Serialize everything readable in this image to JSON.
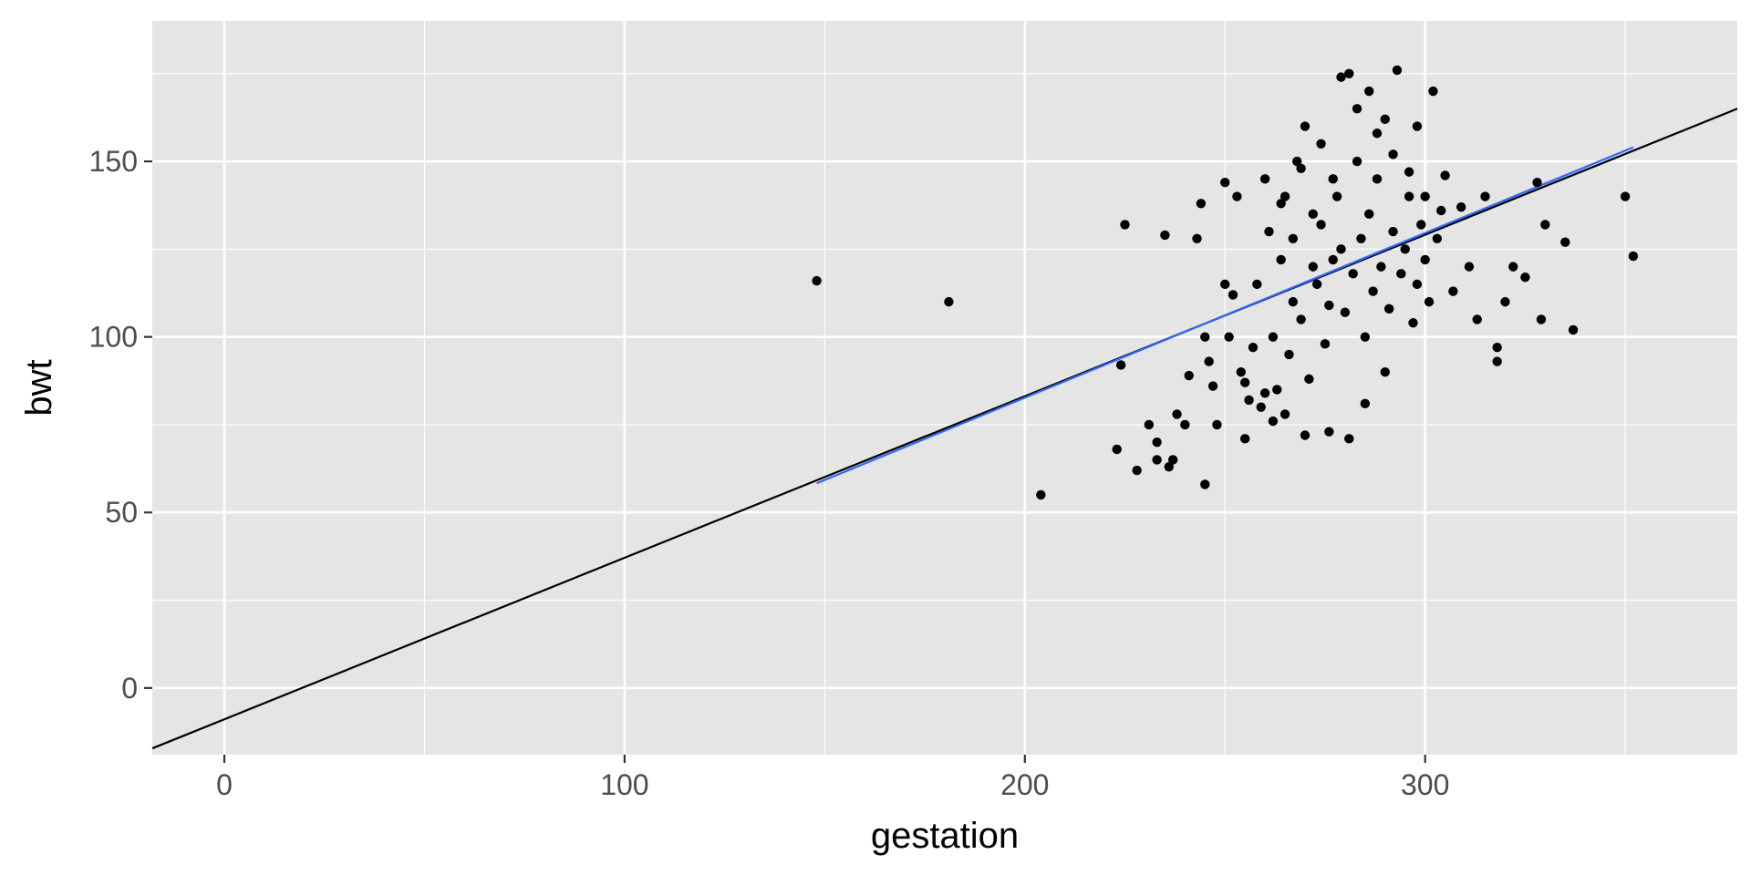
{
  "chart_data": {
    "type": "scatter",
    "title": "",
    "xlabel": "gestation",
    "ylabel": "bwt",
    "xlim": [
      -18,
      378
    ],
    "ylim": [
      -19,
      190
    ],
    "x_ticks": [
      0,
      100,
      200,
      300
    ],
    "x_tick_labels": [
      "0",
      "100",
      "200",
      "300"
    ],
    "y_ticks": [
      0,
      50,
      100,
      150
    ],
    "y_tick_labels": [
      "0",
      "50",
      "100",
      "150"
    ],
    "grid": true,
    "background_color": "#e5e5e5",
    "grid_color": "#ffffff",
    "point_color": "#000000",
    "points": [
      [
        148,
        116
      ],
      [
        181,
        110
      ],
      [
        204,
        55
      ],
      [
        223,
        68
      ],
      [
        225,
        132
      ],
      [
        224,
        92
      ],
      [
        228,
        62
      ],
      [
        231,
        75
      ],
      [
        233,
        65
      ],
      [
        233,
        70
      ],
      [
        235,
        129
      ],
      [
        236,
        63
      ],
      [
        237,
        65
      ],
      [
        238,
        78
      ],
      [
        240,
        75
      ],
      [
        241,
        89
      ],
      [
        243,
        128
      ],
      [
        244,
        138
      ],
      [
        245,
        58
      ],
      [
        246,
        93
      ],
      [
        247,
        86
      ],
      [
        248,
        75
      ],
      [
        250,
        144
      ],
      [
        251,
        100
      ],
      [
        252,
        112
      ],
      [
        253,
        140
      ],
      [
        254,
        90
      ],
      [
        255,
        71
      ],
      [
        256,
        82
      ],
      [
        257,
        97
      ],
      [
        258,
        115
      ],
      [
        259,
        80
      ],
      [
        260,
        145
      ],
      [
        261,
        130
      ],
      [
        262,
        100
      ],
      [
        263,
        85
      ],
      [
        264,
        122
      ],
      [
        265,
        140
      ],
      [
        266,
        95
      ],
      [
        267,
        110
      ],
      [
        268,
        150
      ],
      [
        269,
        105
      ],
      [
        270,
        160
      ],
      [
        271,
        88
      ],
      [
        272,
        120
      ],
      [
        273,
        115
      ],
      [
        274,
        132
      ],
      [
        275,
        98
      ],
      [
        276,
        109
      ],
      [
        277,
        122
      ],
      [
        278,
        140
      ],
      [
        279,
        125
      ],
      [
        280,
        107
      ],
      [
        281,
        175
      ],
      [
        282,
        118
      ],
      [
        283,
        165
      ],
      [
        284,
        128
      ],
      [
        285,
        100
      ],
      [
        286,
        135
      ],
      [
        287,
        113
      ],
      [
        288,
        145
      ],
      [
        289,
        120
      ],
      [
        290,
        162
      ],
      [
        291,
        108
      ],
      [
        292,
        130
      ],
      [
        293,
        176
      ],
      [
        294,
        118
      ],
      [
        295,
        125
      ],
      [
        296,
        140
      ],
      [
        297,
        104
      ],
      [
        298,
        115
      ],
      [
        299,
        132
      ],
      [
        300,
        122
      ],
      [
        301,
        110
      ],
      [
        302,
        170
      ],
      [
        303,
        128
      ],
      [
        305,
        146
      ],
      [
        307,
        113
      ],
      [
        309,
        137
      ],
      [
        311,
        120
      ],
      [
        313,
        105
      ],
      [
        315,
        140
      ],
      [
        318,
        93
      ],
      [
        318,
        97
      ],
      [
        320,
        110
      ],
      [
        322,
        120
      ],
      [
        325,
        117
      ],
      [
        328,
        144
      ],
      [
        329,
        105
      ],
      [
        330,
        132
      ],
      [
        335,
        127
      ],
      [
        337,
        102
      ],
      [
        350,
        140
      ],
      [
        352,
        123
      ],
      [
        270,
        72
      ],
      [
        276,
        73
      ],
      [
        281,
        71
      ],
      [
        285,
        81
      ],
      [
        290,
        90
      ],
      [
        265,
        78
      ],
      [
        260,
        84
      ],
      [
        255,
        87
      ],
      [
        250,
        115
      ],
      [
        245,
        100
      ],
      [
        262,
        76
      ],
      [
        267,
        128
      ],
      [
        272,
        135
      ],
      [
        277,
        145
      ],
      [
        283,
        150
      ],
      [
        288,
        158
      ],
      [
        292,
        152
      ],
      [
        296,
        147
      ],
      [
        300,
        140
      ],
      [
        304,
        136
      ],
      [
        298,
        160
      ],
      [
        286,
        170
      ],
      [
        279,
        174
      ],
      [
        274,
        155
      ],
      [
        269,
        148
      ],
      [
        264,
        138
      ]
    ],
    "lines": [
      {
        "name": "",
        "color": "#000000",
        "x": [
          -18,
          378
        ],
        "y": [
          -17.2,
          165.0
        ]
      },
      {
        "name": "",
        "color": "#3366ff",
        "x": [
          148,
          352
        ],
        "y": [
          58.3,
          154.0
        ]
      }
    ]
  }
}
